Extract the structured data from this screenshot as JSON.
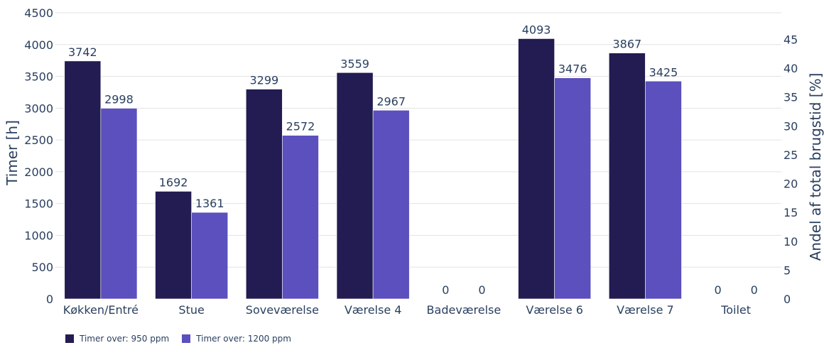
{
  "chart_data": {
    "type": "bar",
    "categories": [
      "Køkken/Entré",
      "Stue",
      "Soveværelse",
      "Værelse 4",
      "Badeværelse",
      "Værelse 6",
      "Værelse 7",
      "Toilet"
    ],
    "series": [
      {
        "name": "Timer over: 950 ppm",
        "color": "#221c52",
        "values": [
          3742,
          1692,
          3299,
          3559,
          0,
          4093,
          3867,
          0
        ]
      },
      {
        "name": "Timer over: 1200 ppm",
        "color": "#5b50bd",
        "values": [
          2998,
          1361,
          2572,
          2967,
          0,
          3476,
          3425,
          0
        ]
      }
    ],
    "ylabel": "Timer [h]",
    "y2label": "Andel af total brugstid [%]",
    "ylim": [
      0,
      4500
    ],
    "yticks": [
      "0",
      "500",
      "1000",
      "1500",
      "2000",
      "2500",
      "3000",
      "3500",
      "4000",
      "4500"
    ],
    "y2lim": [
      0,
      49.6
    ],
    "y2ticks": [
      "0",
      "5",
      "10",
      "15",
      "20",
      "25",
      "30",
      "35",
      "40",
      "45"
    ],
    "grid": true,
    "legend_position": "bottom-left"
  }
}
